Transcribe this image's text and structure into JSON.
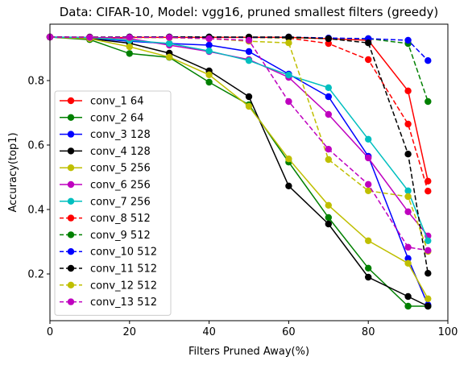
{
  "chart_data": {
    "type": "line",
    "title": "Data: CIFAR-10, Model: vgg16, pruned smallest filters (greedy)",
    "xlabel": "Filters Pruned Away(%)",
    "ylabel": "Accuracy(top1)",
    "xlim": [
      0,
      100
    ],
    "ylim": [
      0.055,
      0.975
    ],
    "xticks": [
      0,
      20,
      40,
      60,
      80,
      100
    ],
    "yticks": [
      0.2,
      0.4,
      0.6,
      0.8
    ],
    "grid": false,
    "legend_position": "center-left",
    "x": [
      0,
      10,
      20,
      30,
      40,
      50,
      60,
      70,
      80,
      90,
      95
    ],
    "series": [
      {
        "name": "conv_1 64",
        "color": "#ff0000",
        "dash": false,
        "values": [
          0.935,
          0.932,
          0.934,
          0.934,
          0.934,
          0.934,
          0.934,
          0.93,
          0.925,
          0.768,
          0.488
        ]
      },
      {
        "name": "conv_2 64",
        "color": "#008000",
        "dash": false,
        "values": [
          0.935,
          0.927,
          0.884,
          0.872,
          0.795,
          0.725,
          0.547,
          0.375,
          0.218,
          0.1,
          0.1
        ]
      },
      {
        "name": "conv_3 128",
        "color": "#0000ff",
        "dash": false,
        "values": [
          0.935,
          0.932,
          0.922,
          0.915,
          0.91,
          0.89,
          0.82,
          0.75,
          0.565,
          0.248,
          0.104
        ]
      },
      {
        "name": "conv_4 128",
        "color": "#000000",
        "dash": false,
        "values": [
          0.935,
          0.93,
          0.916,
          0.885,
          0.83,
          0.75,
          0.473,
          0.355,
          0.19,
          0.13,
          0.1
        ]
      },
      {
        "name": "conv_5 256",
        "color": "#bfbf00",
        "dash": false,
        "values": [
          0.935,
          0.93,
          0.905,
          0.873,
          0.818,
          0.72,
          0.557,
          0.413,
          0.303,
          0.233,
          0.123
        ]
      },
      {
        "name": "conv_6 256",
        "color": "#bf00bf",
        "dash": false,
        "values": [
          0.935,
          0.934,
          0.93,
          0.91,
          0.89,
          0.865,
          0.81,
          0.695,
          0.56,
          0.393,
          0.318
        ]
      },
      {
        "name": "conv_7 256",
        "color": "#00bfbf",
        "dash": false,
        "values": [
          0.935,
          0.933,
          0.925,
          0.915,
          0.892,
          0.862,
          0.817,
          0.778,
          0.618,
          0.458,
          0.303
        ]
      },
      {
        "name": "conv_8 512",
        "color": "#ff0000",
        "dash": true,
        "values": [
          0.935,
          0.934,
          0.934,
          0.934,
          0.934,
          0.934,
          0.932,
          0.915,
          0.865,
          0.665,
          0.457
        ]
      },
      {
        "name": "conv_9 512",
        "color": "#008000",
        "dash": true,
        "values": [
          0.935,
          0.934,
          0.935,
          0.935,
          0.935,
          0.934,
          0.933,
          0.931,
          0.93,
          0.915,
          0.735
        ]
      },
      {
        "name": "conv_10 512",
        "color": "#0000ff",
        "dash": true,
        "values": [
          0.935,
          0.934,
          0.935,
          0.935,
          0.935,
          0.934,
          0.935,
          0.932,
          0.93,
          0.925,
          0.862
        ]
      },
      {
        "name": "conv_11 512",
        "color": "#000000",
        "dash": true,
        "values": [
          0.935,
          0.935,
          0.935,
          0.935,
          0.935,
          0.935,
          0.935,
          0.93,
          0.917,
          0.572,
          0.202
        ]
      },
      {
        "name": "conv_12 512",
        "color": "#bfbf00",
        "dash": true,
        "values": [
          0.935,
          0.933,
          0.933,
          0.933,
          0.93,
          0.922,
          0.917,
          0.555,
          0.458,
          0.44,
          0.27
        ]
      },
      {
        "name": "conv_13 512",
        "color": "#bf00bf",
        "dash": true,
        "values": [
          0.935,
          0.934,
          0.934,
          0.934,
          0.93,
          0.925,
          0.735,
          0.587,
          0.478,
          0.283,
          0.273
        ]
      }
    ]
  }
}
